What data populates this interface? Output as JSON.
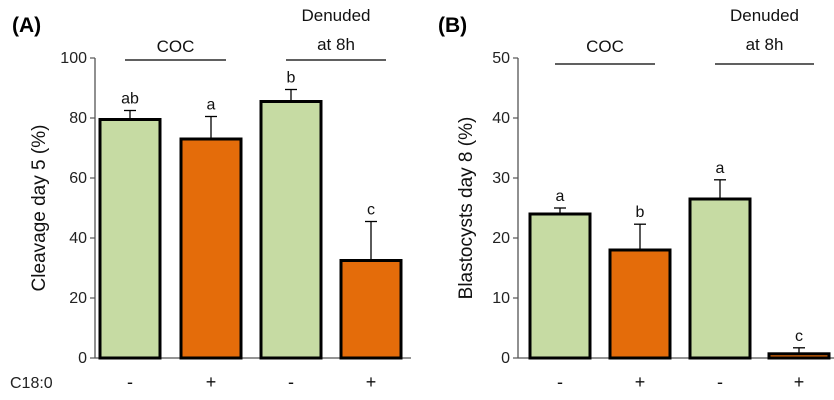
{
  "chart_data": [
    {
      "type": "bar",
      "panel_label": "(A)",
      "ylabel": "Cleavage day 5 (%)",
      "ylim": [
        0,
        100
      ],
      "yticks": [
        "0",
        "20",
        "40",
        "60",
        "80",
        "100"
      ],
      "row_label": "C18:0",
      "categories": [
        "-",
        "+",
        "-",
        "+"
      ],
      "values": [
        79.5,
        73,
        85.5,
        32.5
      ],
      "errors": [
        3,
        7.5,
        4,
        13
      ],
      "letters": [
        "ab",
        "a",
        "b",
        "c"
      ],
      "groups": [
        {
          "lines": [
            "COC"
          ]
        },
        {
          "lines": [
            "Denuded",
            "at 8h"
          ]
        }
      ]
    },
    {
      "type": "bar",
      "panel_label": "(B)",
      "ylabel": "Blastocysts day 8 (%)",
      "ylim": [
        0,
        50
      ],
      "yticks": [
        "0",
        "10",
        "20",
        "30",
        "40",
        "50"
      ],
      "row_label": "",
      "categories": [
        "-",
        "+",
        "-",
        "+"
      ],
      "values": [
        24,
        18,
        26.5,
        0.7
      ],
      "errors": [
        1,
        4.3,
        3.2,
        1
      ],
      "letters": [
        "a",
        "b",
        "a",
        "c"
      ],
      "groups": [
        {
          "lines": [
            "COC"
          ]
        },
        {
          "lines": [
            "Denuded",
            "at 8h"
          ]
        }
      ]
    }
  ],
  "colors": {
    "minus_bar": "#c6dba3",
    "plus_bar": "#e46c0a",
    "bar_stroke": "#000000"
  }
}
